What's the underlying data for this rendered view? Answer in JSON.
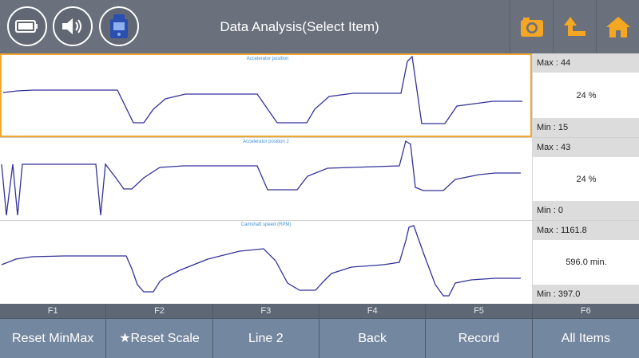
{
  "header": {
    "title": "Data Analysis(Select Item)",
    "accent": "#f5a623",
    "icons": [
      "battery-icon",
      "speaker-icon",
      "vci-device-icon",
      "camera-icon",
      "back-arrow-icon",
      "home-icon"
    ]
  },
  "rows": [
    {
      "title": "Accelerator position",
      "max": "Max : 44",
      "current": "24 %",
      "min": "Min :    15",
      "selected": true
    },
    {
      "title": "Accelerator position 2",
      "max": "Max : 43",
      "current": "24 %",
      "min": "Min :     0",
      "selected": false
    },
    {
      "title": "Camshaft speed (RPM)",
      "max": "Max : 1161.8",
      "current": "596.0 min.",
      "min": "Min : 397.0",
      "selected": false
    }
  ],
  "fkeys": [
    {
      "num": "F1",
      "label": "Reset MinMax"
    },
    {
      "num": "F2",
      "label": "★Reset Scale"
    },
    {
      "num": "F3",
      "label": "Line 2"
    },
    {
      "num": "F4",
      "label": "Back"
    },
    {
      "num": "F5",
      "label": "Record"
    },
    {
      "num": "F6",
      "label": "All Items"
    }
  ]
}
